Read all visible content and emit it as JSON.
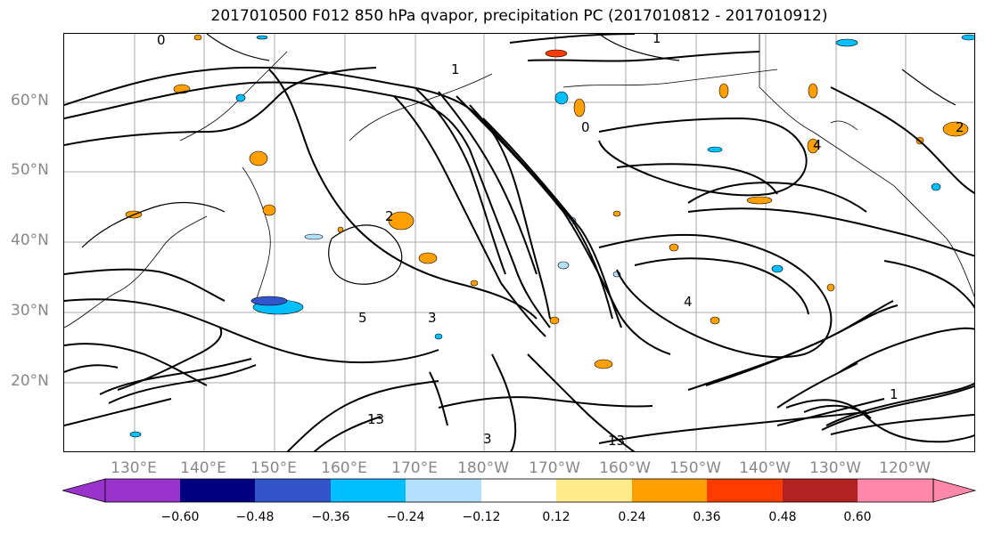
{
  "title": "2017010500 F012 850 hPa qvapor, precipitation PC (2017010812 - 2017010912)",
  "lat_labels": [
    "60°N",
    "50°N",
    "40°N",
    "30°N",
    "20°N"
  ],
  "lon_labels": [
    "130°E",
    "140°E",
    "150°E",
    "160°E",
    "170°E",
    "180°W",
    "170°W",
    "160°W",
    "150°W",
    "140°W",
    "130°W",
    "120°W"
  ],
  "contour_labels": [
    "0",
    "1",
    "2",
    "3",
    "4",
    "5",
    "1",
    "0",
    "13",
    "1",
    "13",
    "3",
    "2",
    "4"
  ],
  "colorbar": {
    "ticks": [
      "−0.60",
      "−0.48",
      "−0.36",
      "−0.24",
      "−0.12",
      "0.12",
      "0.24",
      "0.36",
      "0.48",
      "0.60"
    ],
    "colors": [
      "#9933cc",
      "#000080",
      "#3355cc",
      "#00bfff",
      "#b3e0ff",
      "#ffffff",
      "#ffeb8a",
      "#ff9f00",
      "#ff3c00",
      "#b22222",
      "#ff88aa"
    ]
  },
  "colors": {
    "contour": "#000000",
    "grid": "#aaaaaa",
    "coast": "#000000",
    "positive_shade": "#ff9f00",
    "negative_shade": "#00bfff"
  }
}
